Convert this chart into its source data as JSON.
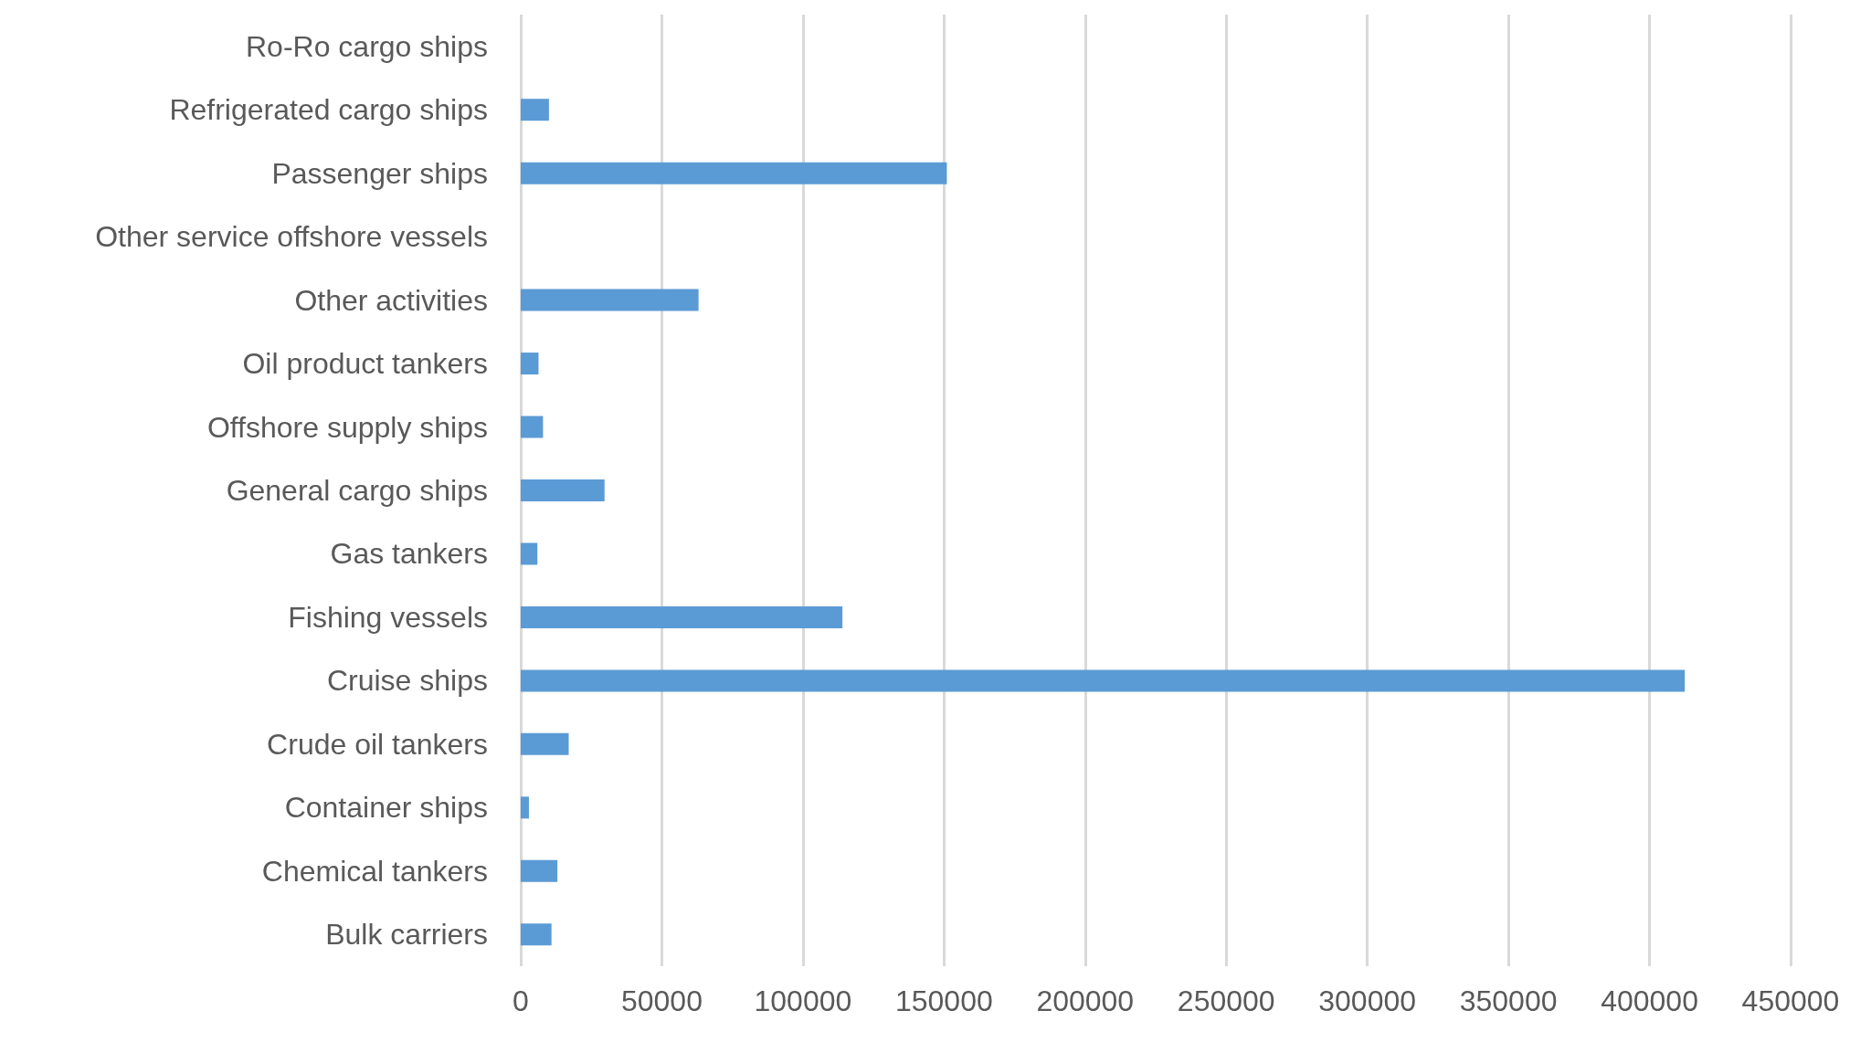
{
  "chart_data": {
    "type": "bar",
    "orientation": "horizontal",
    "categories": [
      "Ro-Ro cargo ships",
      "Refrigerated cargo ships",
      "Passenger ships",
      "Other service offshore vessels",
      "Other activities",
      "Oil product tankers",
      "Offshore supply ships",
      "General cargo ships",
      "Gas tankers",
      "Fishing vessels",
      "Cruise ships",
      "Crude oil tankers",
      "Container ships",
      "Chemical tankers",
      "Bulk carriers"
    ],
    "values": [
      0,
      10000,
      151000,
      0,
      63000,
      6300,
      7900,
      29700,
      5900,
      114000,
      412500,
      17000,
      2900,
      13000,
      10900
    ],
    "color": "#5b9bd5",
    "xlim": [
      0,
      450000
    ],
    "xticks": [
      0,
      50000,
      100000,
      150000,
      200000,
      250000,
      300000,
      350000,
      400000,
      450000
    ],
    "grid": "x"
  }
}
